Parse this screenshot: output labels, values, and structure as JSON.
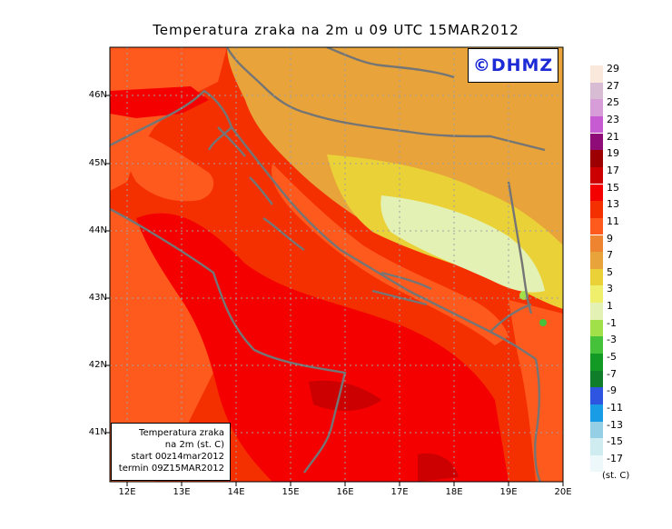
{
  "title": "Temperatura zraka na 2m u 09 UTC 15MAR2012",
  "logo": "©DHMZ",
  "info": {
    "line1": "Temperatura zraka",
    "line2": "na 2m (st. C)",
    "line3": "start 00z14mar2012",
    "line4": "termin 09Z15MAR2012"
  },
  "lat_labels": [
    "46N",
    "45N",
    "44N",
    "43N",
    "42N",
    "41N"
  ],
  "lon_labels": [
    "12E",
    "13E",
    "14E",
    "15E",
    "16E",
    "17E",
    "18E",
    "19E",
    "20E"
  ],
  "legend": {
    "labels": [
      "29",
      "27",
      "25",
      "23",
      "21",
      "19",
      "17",
      "15",
      "13",
      "11",
      "9",
      "7",
      "5",
      "3",
      "1",
      "-1",
      "-3",
      "-5",
      "-7",
      "-9",
      "-11",
      "-13",
      "-15",
      "-17"
    ],
    "colors": [
      "#fbe8dc",
      "#d7bcd3",
      "#d79dd8",
      "#c65bd2",
      "#8e0b78",
      "#9c0000",
      "#cc0000",
      "#f40000",
      "#f53000",
      "#ff5a1e",
      "#ee8330",
      "#e8a43a",
      "#ead137",
      "#f0ef6b",
      "#e3f2b4",
      "#a2e04a",
      "#46c23a",
      "#129a25",
      "#0f7d29",
      "#2d55e2",
      "#189ce6",
      "#95cfe6",
      "#cfecf1",
      "#ecf8fa"
    ],
    "unit": "(st. C)"
  },
  "map": {
    "extent_lon": [
      11.75,
      20.0
    ],
    "extent_lat": [
      40.3,
      46.7
    ],
    "colors": {
      "sea_warm": "#f40000",
      "sea_mild": "#ff5a1e",
      "land_warm": "#e8a43a",
      "land_cool": "#ead137",
      "land_cold": "#e3f2b4",
      "coast": "#757575"
    }
  }
}
